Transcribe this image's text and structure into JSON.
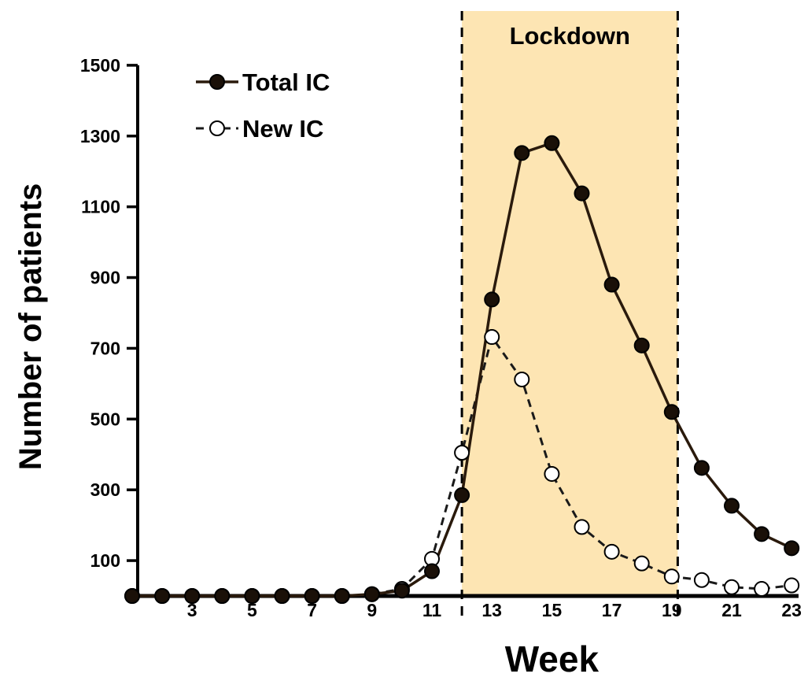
{
  "chart_data": {
    "type": "line",
    "title": "",
    "xlabel": "Week",
    "ylabel": "Number of patients",
    "xlim": [
      1,
      23
    ],
    "ylim": [
      0,
      1500
    ],
    "x_ticks": [
      3,
      5,
      7,
      9,
      11,
      13,
      15,
      17,
      19,
      21,
      23
    ],
    "y_ticks": [
      100,
      300,
      500,
      700,
      900,
      1100,
      1300,
      1500
    ],
    "grid": false,
    "legend_position": "top-left",
    "shaded_region": {
      "label": "Lockdown",
      "x_start": 12,
      "x_end": 19.2,
      "color": "#fde5b3"
    },
    "series": [
      {
        "name": "Total IC",
        "style": "solid",
        "marker": "filled-circle",
        "color": "#2a1a0c",
        "x": [
          1,
          2,
          3,
          4,
          5,
          6,
          7,
          8,
          9,
          10,
          11,
          12,
          13,
          14,
          15,
          16,
          17,
          18,
          19,
          20,
          21,
          22,
          23
        ],
        "values": [
          0,
          0,
          0,
          0,
          0,
          0,
          0,
          0,
          5,
          15,
          70,
          285,
          838,
          1252,
          1280,
          1138,
          880,
          708,
          520,
          362,
          255,
          175,
          135
        ]
      },
      {
        "name": "New IC",
        "style": "dashed",
        "marker": "open-circle",
        "color": "#1a1a1a",
        "x": [
          1,
          2,
          3,
          4,
          5,
          6,
          7,
          8,
          9,
          10,
          11,
          12,
          13,
          14,
          15,
          16,
          17,
          18,
          19,
          20,
          21,
          22,
          23
        ],
        "values": [
          0,
          0,
          0,
          0,
          0,
          0,
          0,
          0,
          5,
          20,
          105,
          405,
          732,
          612,
          345,
          195,
          125,
          92,
          55,
          45,
          25,
          20,
          30
        ]
      }
    ]
  }
}
